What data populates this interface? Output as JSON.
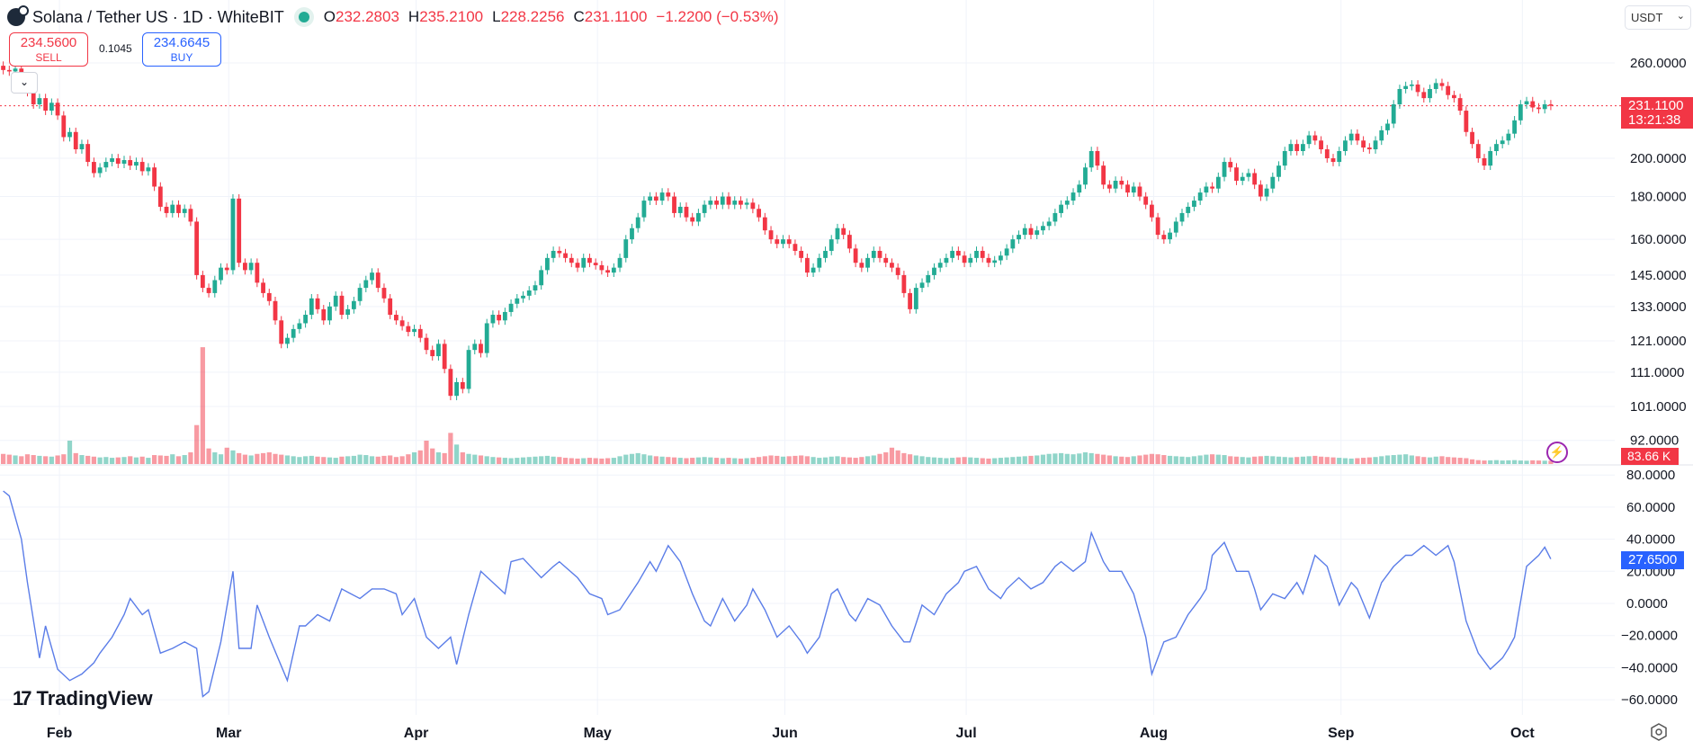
{
  "header": {
    "symbol": "Solana / Tether US · 1D · WhiteBIT",
    "open_label": "O",
    "open": "232.2803",
    "high_label": "H",
    "high": "235.2100",
    "low_label": "L",
    "low": "228.2256",
    "close_label": "C",
    "close": "231.1100",
    "change": "−1.2200 (−0.53%)"
  },
  "trade": {
    "sell_price": "234.5600",
    "sell_label": "SELL",
    "spread": "0.1045",
    "buy_price": "234.6645",
    "buy_label": "BUY"
  },
  "currency": "USDT",
  "tags": {
    "price": "231.1100",
    "countdown": "13:21:38",
    "volume": "83.66 K",
    "oscillator": "27.6500"
  },
  "branding": "TradingView",
  "colors": {
    "up": "#22ab94",
    "down": "#f23645",
    "oscillator": "#5b7de8",
    "price_tag": "#f23645",
    "osc_tag": "#2962ff"
  },
  "chart_data": {
    "type": "candlestick",
    "title": "Solana / Tether US · 1D · WhiteBIT",
    "price_scale": "log",
    "first_open": 258,
    "closes": [
      255,
      254,
      256,
      250,
      240,
      232,
      236,
      228,
      233,
      225,
      212,
      215,
      205,
      208,
      198,
      192,
      195,
      198,
      200,
      197,
      199,
      196,
      198,
      193,
      195,
      185,
      175,
      172,
      176,
      172,
      174,
      168,
      145,
      140,
      138,
      143,
      148,
      147,
      179,
      150,
      147,
      150,
      142,
      138,
      135,
      128,
      120,
      122,
      125,
      127,
      130,
      136,
      132,
      128,
      133,
      137,
      130,
      132,
      135,
      140,
      143,
      146,
      140,
      136,
      130,
      128,
      126,
      124,
      125,
      122,
      118,
      116,
      120,
      112,
      104,
      108,
      106,
      118,
      120,
      117,
      127,
      130,
      128,
      131,
      134,
      136,
      137,
      139,
      141,
      147,
      152,
      155,
      154,
      152,
      150,
      148,
      152,
      150,
      149,
      147,
      146,
      148,
      152,
      160,
      165,
      170,
      178,
      180,
      178,
      182,
      180,
      172,
      175,
      170,
      168,
      172,
      176,
      178,
      176,
      180,
      176,
      178,
      176,
      177,
      174,
      170,
      164,
      160,
      158,
      160,
      158,
      155,
      152,
      146,
      148,
      152,
      155,
      160,
      165,
      162,
      156,
      150,
      148,
      152,
      155,
      152,
      150,
      148,
      145,
      138,
      132,
      140,
      142,
      145,
      148,
      150,
      152,
      155,
      153,
      150,
      152,
      155,
      152,
      150,
      151,
      153,
      156,
      160,
      162,
      165,
      162,
      164,
      166,
      168,
      172,
      176,
      178,
      182,
      186,
      195,
      204,
      196,
      186,
      184,
      188,
      186,
      182,
      185,
      180,
      176,
      170,
      162,
      160,
      163,
      168,
      172,
      175,
      178,
      182,
      185,
      184,
      190,
      198,
      195,
      188,
      190,
      192,
      186,
      180,
      184,
      190,
      196,
      204,
      208,
      204,
      208,
      213,
      210,
      205,
      200,
      198,
      204,
      210,
      214,
      210,
      206,
      205,
      210,
      216,
      220,
      232,
      242,
      244,
      245,
      240,
      236,
      242,
      246,
      244,
      238,
      236,
      228,
      215,
      208,
      200,
      196,
      204,
      208,
      210,
      214,
      222,
      232,
      234,
      230,
      229,
      232,
      231.11
    ],
    "volume_k": [
      260,
      240,
      220,
      200,
      250,
      230,
      210,
      200,
      190,
      220,
      250,
      600,
      280,
      230,
      210,
      190,
      170,
      180,
      160,
      170,
      180,
      200,
      170,
      190,
      160,
      230,
      220,
      210,
      250,
      200,
      230,
      300,
      1000,
      3000,
      400,
      300,
      250,
      420,
      350,
      280,
      240,
      220,
      260,
      280,
      300,
      260,
      240,
      220,
      200,
      180,
      200,
      210,
      190,
      180,
      170,
      160,
      190,
      200,
      210,
      240,
      230,
      200,
      190,
      210,
      220,
      180,
      200,
      250,
      300,
      350,
      600,
      400,
      300,
      280,
      800,
      500,
      300,
      260,
      240,
      220,
      200,
      180,
      170,
      160,
      150,
      160,
      170,
      180,
      190,
      200,
      210,
      190,
      180,
      160,
      150,
      140,
      150,
      160,
      150,
      140,
      150,
      160,
      200,
      240,
      260,
      280,
      250,
      220,
      200,
      190,
      180,
      170,
      160,
      150,
      160,
      170,
      180,
      170,
      160,
      150,
      160,
      150,
      140,
      150,
      160,
      180,
      200,
      220,
      210,
      190,
      200,
      210,
      220,
      200,
      180,
      160,
      170,
      190,
      200,
      180,
      170,
      160,
      180,
      200,
      220,
      260,
      300,
      420,
      350,
      280,
      250,
      220,
      200,
      180,
      170,
      160,
      150,
      160,
      170,
      180,
      170,
      160,
      150,
      140,
      150,
      160,
      170,
      180,
      190,
      200,
      210,
      220,
      240,
      260,
      270,
      280,
      260,
      250,
      270,
      300,
      280,
      260,
      240,
      220,
      200,
      190,
      180,
      200,
      220,
      240,
      260,
      250,
      230,
      210,
      200,
      190,
      180,
      200,
      220,
      240,
      250,
      240,
      230,
      200,
      190,
      180,
      170,
      190,
      200,
      210,
      200,
      190,
      180,
      170,
      180,
      190,
      200,
      210,
      190,
      180,
      170,
      160,
      150,
      140,
      150,
      160,
      170,
      180,
      200,
      220,
      230,
      240,
      250,
      220,
      200,
      180,
      170,
      190,
      200,
      180,
      170,
      160,
      150,
      120,
      100,
      90,
      95,
      100,
      90,
      95,
      100,
      90,
      85,
      95,
      90,
      85,
      83.66
    ],
    "oscillator": [
      [
        0,
        70
      ],
      [
        1,
        67
      ],
      [
        3,
        40
      ],
      [
        4,
        13
      ],
      [
        6,
        -34
      ],
      [
        7,
        -14
      ],
      [
        9,
        -41
      ],
      [
        11,
        -48
      ],
      [
        13,
        -44
      ],
      [
        15,
        -37
      ],
      [
        16,
        -31
      ],
      [
        18,
        -21
      ],
      [
        20,
        -7
      ],
      [
        21,
        3
      ],
      [
        23,
        -7
      ],
      [
        24,
        -4
      ],
      [
        26,
        -31
      ],
      [
        28,
        -28
      ],
      [
        30,
        -24
      ],
      [
        32,
        -28
      ],
      [
        33,
        -58
      ],
      [
        34,
        -55
      ],
      [
        36,
        -24
      ],
      [
        38,
        20
      ],
      [
        39,
        -28
      ],
      [
        41,
        -28
      ],
      [
        42,
        -1
      ],
      [
        44,
        -21
      ],
      [
        47,
        -48
      ],
      [
        49,
        -14
      ],
      [
        50,
        -14
      ],
      [
        52,
        -7
      ],
      [
        54,
        -11
      ],
      [
        56,
        9
      ],
      [
        57,
        7
      ],
      [
        59,
        3
      ],
      [
        61,
        9
      ],
      [
        63,
        9
      ],
      [
        65,
        6
      ],
      [
        66,
        -7
      ],
      [
        68,
        3
      ],
      [
        70,
        -21
      ],
      [
        72,
        -28
      ],
      [
        74,
        -21
      ],
      [
        75,
        -38
      ],
      [
        77,
        -7
      ],
      [
        79,
        20
      ],
      [
        81,
        13
      ],
      [
        83,
        6
      ],
      [
        84,
        26
      ],
      [
        86,
        28
      ],
      [
        88,
        20
      ],
      [
        89,
        16
      ],
      [
        91,
        23
      ],
      [
        92,
        26
      ],
      [
        95,
        16
      ],
      [
        97,
        6
      ],
      [
        99,
        3
      ],
      [
        100,
        -7
      ],
      [
        102,
        -4
      ],
      [
        105,
        13
      ],
      [
        107,
        26
      ],
      [
        108,
        20
      ],
      [
        110,
        36
      ],
      [
        112,
        26
      ],
      [
        114,
        6
      ],
      [
        116,
        -11
      ],
      [
        117,
        -14
      ],
      [
        119,
        3
      ],
      [
        121,
        -11
      ],
      [
        123,
        -1
      ],
      [
        124,
        9
      ],
      [
        126,
        -4
      ],
      [
        128,
        -21
      ],
      [
        130,
        -14
      ],
      [
        132,
        -24
      ],
      [
        133,
        -31
      ],
      [
        135,
        -21
      ],
      [
        137,
        6
      ],
      [
        138,
        9
      ],
      [
        140,
        -7
      ],
      [
        141,
        -11
      ],
      [
        143,
        3
      ],
      [
        145,
        -1
      ],
      [
        147,
        -14
      ],
      [
        149,
        -24
      ],
      [
        150,
        -24
      ],
      [
        152,
        -1
      ],
      [
        154,
        -7
      ],
      [
        156,
        6
      ],
      [
        158,
        13
      ],
      [
        159,
        20
      ],
      [
        161,
        23
      ],
      [
        163,
        9
      ],
      [
        165,
        3
      ],
      [
        166,
        9
      ],
      [
        168,
        16
      ],
      [
        170,
        9
      ],
      [
        172,
        13
      ],
      [
        174,
        23
      ],
      [
        175,
        26
      ],
      [
        177,
        20
      ],
      [
        179,
        26
      ],
      [
        180,
        44
      ],
      [
        182,
        26
      ],
      [
        183,
        20
      ],
      [
        185,
        20
      ],
      [
        187,
        6
      ],
      [
        189,
        -21
      ],
      [
        190,
        -44
      ],
      [
        192,
        -24
      ],
      [
        194,
        -21
      ],
      [
        196,
        -7
      ],
      [
        198,
        3
      ],
      [
        199,
        9
      ],
      [
        200,
        30
      ],
      [
        202,
        38
      ],
      [
        204,
        20
      ],
      [
        206,
        20
      ],
      [
        207,
        9
      ],
      [
        208,
        -4
      ],
      [
        210,
        6
      ],
      [
        212,
        3
      ],
      [
        214,
        13
      ],
      [
        215,
        6
      ],
      [
        217,
        30
      ],
      [
        219,
        23
      ],
      [
        221,
        -1
      ],
      [
        223,
        13
      ],
      [
        224,
        9
      ],
      [
        226,
        -9
      ],
      [
        228,
        13
      ],
      [
        230,
        23
      ],
      [
        232,
        30
      ],
      [
        233,
        30
      ],
      [
        235,
        36
      ],
      [
        237,
        30
      ],
      [
        239,
        36
      ],
      [
        240,
        26
      ],
      [
        242,
        -11
      ],
      [
        244,
        -31
      ],
      [
        246,
        -41
      ],
      [
        248,
        -34
      ],
      [
        249,
        -28
      ],
      [
        250,
        -21
      ],
      [
        252,
        23
      ],
      [
        254,
        30
      ],
      [
        255,
        35
      ],
      [
        256,
        27.65
      ]
    ],
    "price_ticks": [
      "260.0000",
      "200.0000",
      "180.0000",
      "160.0000",
      "145.0000",
      "133.0000",
      "121.0000",
      "111.0000",
      "101.0000",
      "92.0000"
    ],
    "oscillator_ticks": [
      "80.0000",
      "60.0000",
      "40.0000",
      "20.0000",
      "0.0000",
      "-20.0000",
      "-40.0000",
      "-60.0000"
    ],
    "month_ticks": [
      {
        "label": "Feb",
        "day": 9.3
      },
      {
        "label": "Mar",
        "day": 37.3
      },
      {
        "label": "Apr",
        "day": 68.3
      },
      {
        "label": "May",
        "day": 98.3
      },
      {
        "label": "Jun",
        "day": 129.3
      },
      {
        "label": "Jul",
        "day": 159.3
      },
      {
        "label": "Aug",
        "day": 190.3
      },
      {
        "label": "Sep",
        "day": 221.3
      },
      {
        "label": "Oct",
        "day": 251.3
      }
    ],
    "last_price": 231.11,
    "xlabel": "",
    "ylabel": "USDT"
  }
}
